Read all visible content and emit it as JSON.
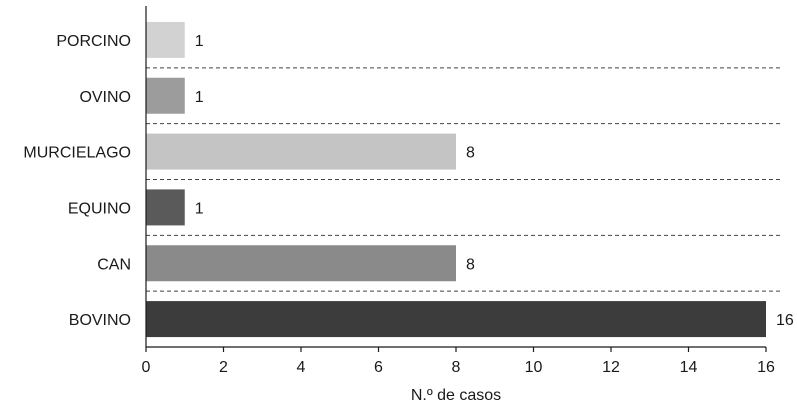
{
  "chart_data": {
    "type": "bar",
    "orientation": "horizontal",
    "categories": [
      "PORCINO",
      "OVINO",
      "MURCIELAGO",
      "EQUINO",
      "CAN",
      "BOVINO"
    ],
    "values": [
      1,
      1,
      8,
      1,
      8,
      16
    ],
    "colors": [
      "#d2d2d2",
      "#9c9c9c",
      "#c4c4c4",
      "#5a5a5a",
      "#8a8a8a",
      "#3c3c3c"
    ],
    "xlabel": "N.º de casos",
    "ylabel": "",
    "title": "",
    "xlim": [
      0,
      16
    ],
    "xticks": [
      0,
      2,
      4,
      6,
      8,
      10,
      12,
      14,
      16
    ],
    "grid": "dashed separators between categories",
    "legend": "none"
  }
}
